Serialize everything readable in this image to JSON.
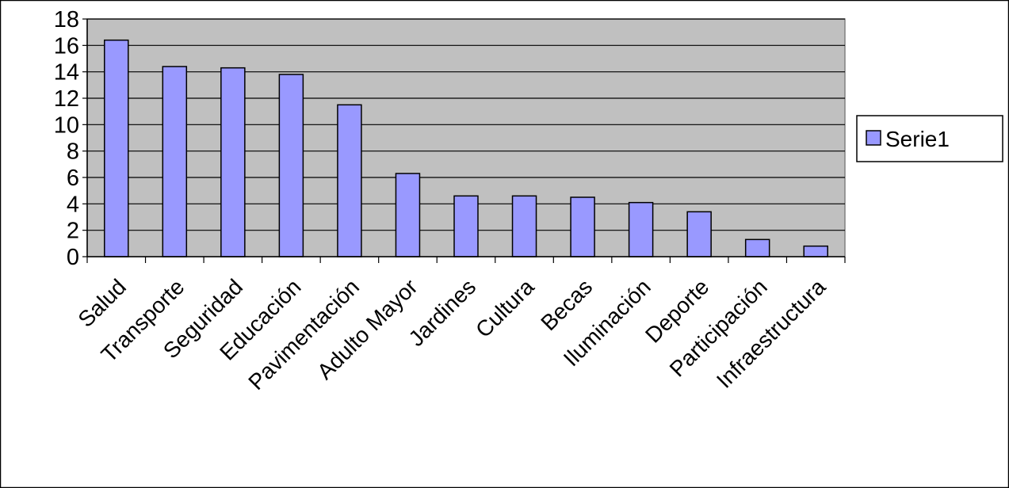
{
  "chart_data": {
    "type": "bar",
    "categories": [
      "Salud",
      "Transporte",
      "Seguridad",
      "Educación",
      "Pavimentación",
      "Adulto Mayor",
      "Jardines",
      "Cultura",
      "Becas",
      "Iluminación",
      "Deporte",
      "Participación",
      "Infraestructura"
    ],
    "series": [
      {
        "name": "Serie1",
        "values": [
          16.4,
          14.4,
          14.3,
          13.8,
          11.5,
          6.3,
          4.6,
          4.6,
          4.5,
          4.1,
          3.4,
          1.3,
          0.8
        ]
      }
    ],
    "yticks": [
      "0",
      "2",
      "4",
      "6",
      "8",
      "10",
      "12",
      "14",
      "16",
      "18"
    ],
    "ylim": [
      0,
      18
    ],
    "grid": true,
    "legend_position": "right",
    "colors": {
      "bar_fill": "#9999FF",
      "plot_background": "#C0C0C0",
      "gridline": "#000000",
      "border": "#000000"
    }
  }
}
